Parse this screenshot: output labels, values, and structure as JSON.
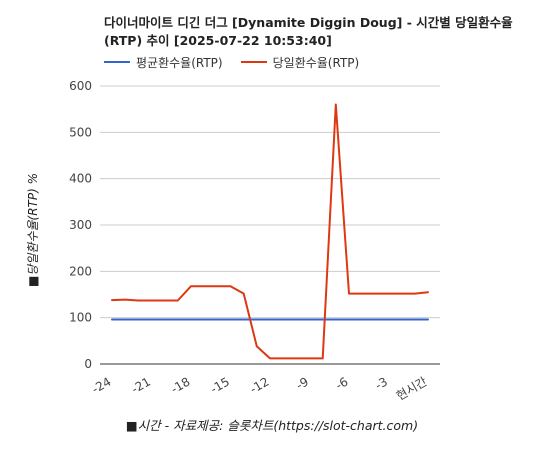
{
  "chart_data": {
    "type": "line",
    "title": "다이너마이트 디긴 더그 [Dynamite Diggin Doug] - 시간별 당일환수율(RTP) 추이 [2025-07-22 10:53:40]",
    "xlabel": "■시간 - 자료제공: 슬롯차트(https://slot-chart.com)",
    "ylabel": "■당일환수율(RTP) %",
    "ylim": [
      0,
      600
    ],
    "yticks": [
      0,
      100,
      200,
      300,
      400,
      500,
      600
    ],
    "xlim": [
      -24,
      0
    ],
    "xticks": [
      {
        "value": -24,
        "label": "-24"
      },
      {
        "value": -21,
        "label": "-21"
      },
      {
        "value": -18,
        "label": "-18"
      },
      {
        "value": -15,
        "label": "-15"
      },
      {
        "value": -12,
        "label": "-12"
      },
      {
        "value": -9,
        "label": "-9"
      },
      {
        "value": -6,
        "label": "-6"
      },
      {
        "value": -3,
        "label": "-3"
      },
      {
        "value": 0,
        "label": "현시간"
      }
    ],
    "grid": true,
    "legend_position": "top-left",
    "series": [
      {
        "name": "평균환수율(RTP)",
        "color": "#3366cc",
        "x": [
          -24,
          0
        ],
        "y": [
          96,
          96
        ]
      },
      {
        "name": "당일환수율(RTP)",
        "color": "#dc3912",
        "x": [
          -24,
          -23,
          -22,
          -21,
          -20,
          -19,
          -18,
          -17,
          -16,
          -15,
          -14,
          -13,
          -12,
          -11,
          -10,
          -9,
          -8,
          -7,
          -6,
          -5,
          -4,
          -3,
          -2,
          -1,
          0
        ],
        "y": [
          138,
          139,
          137,
          137,
          137,
          137,
          168,
          168,
          168,
          168,
          152,
          38,
          12,
          12,
          12,
          12,
          12,
          560,
          152,
          152,
          152,
          152,
          152,
          152,
          155
        ]
      }
    ]
  }
}
